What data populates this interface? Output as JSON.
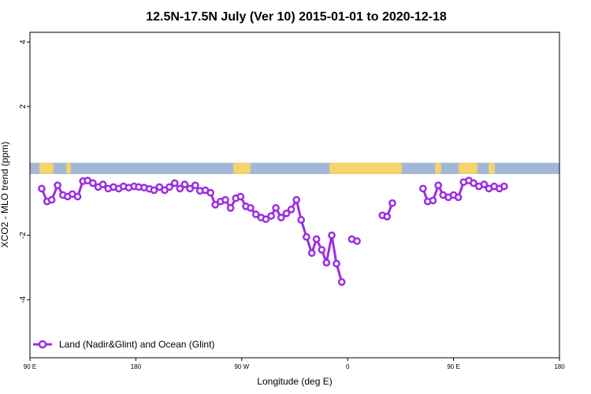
{
  "chart_data": {
    "type": "line",
    "title": "12.5N-17.5N July (Ver 10)   2015-01-01 to 2020-12-18",
    "xlabel": "Longitude (deg E)",
    "ylabel": "XCO2 - MLO trend (ppm)",
    "xlim": [
      -270,
      -180
    ],
    "ylim": [
      -5.8,
      4.3
    ],
    "x_ticks": [
      {
        "value": -270,
        "label": "90 E"
      },
      {
        "value": -252,
        "label": "180"
      },
      {
        "value": -234,
        "label": "90 W"
      },
      {
        "value": -216,
        "label": "0"
      },
      {
        "value": -198,
        "label": "90 E"
      },
      {
        "value": -180,
        "label": "180"
      }
    ],
    "y_ticks": [
      {
        "value": 4,
        "label": "4"
      },
      {
        "value": 2,
        "label": "2"
      },
      {
        "value": -2,
        "label": "-2"
      },
      {
        "value": -4,
        "label": "-4"
      }
    ],
    "grid": false,
    "legend_position": "bottom-left",
    "series": [
      {
        "name": "Land (Nadir&Glint) and Ocean (Glint)",
        "color": "#9b2ee0",
        "segments": [
          [
            [
              -268,
              -0.55
            ],
            [
              -267.1,
              -0.95
            ],
            [
              -266.3,
              -0.9
            ],
            [
              -265.3,
              -0.45
            ],
            [
              -264.4,
              -0.75
            ],
            [
              -263.6,
              -0.8
            ],
            [
              -262.8,
              -0.72
            ],
            [
              -261.9,
              -0.8
            ],
            [
              -261.0,
              -0.32
            ],
            [
              -260.2,
              -0.3
            ],
            [
              -259.3,
              -0.38
            ],
            [
              -258.4,
              -0.5
            ],
            [
              -257.6,
              -0.42
            ],
            [
              -256.7,
              -0.55
            ],
            [
              -255.8,
              -0.5
            ],
            [
              -254.9,
              -0.55
            ],
            [
              -254.1,
              -0.48
            ],
            [
              -253.2,
              -0.52
            ],
            [
              -252.3,
              -0.48
            ],
            [
              -251.5,
              -0.5
            ],
            [
              -250.6,
              -0.52
            ],
            [
              -249.7,
              -0.56
            ],
            [
              -248.9,
              -0.6
            ],
            [
              -248.0,
              -0.5
            ],
            [
              -247.1,
              -0.6
            ],
            [
              -246.3,
              -0.5
            ],
            [
              -245.4,
              -0.38
            ],
            [
              -244.5,
              -0.55
            ],
            [
              -243.7,
              -0.42
            ],
            [
              -242.8,
              -0.55
            ],
            [
              -241.9,
              -0.45
            ],
            [
              -241.1,
              -0.62
            ],
            [
              -240.2,
              -0.6
            ],
            [
              -239.3,
              -0.68
            ],
            [
              -238.5,
              -1.05
            ],
            [
              -237.6,
              -0.95
            ],
            [
              -236.8,
              -0.9
            ],
            [
              -235.9,
              -1.15
            ],
            [
              -235.0,
              -0.85
            ],
            [
              -234.2,
              -0.8
            ],
            [
              -233.3,
              -1.1
            ],
            [
              -232.5,
              -1.15
            ],
            [
              -231.6,
              -1.35
            ],
            [
              -230.7,
              -1.45
            ],
            [
              -229.9,
              -1.5
            ],
            [
              -229.0,
              -1.4
            ],
            [
              -228.2,
              -1.15
            ],
            [
              -227.3,
              -1.45
            ],
            [
              -226.4,
              -1.32
            ],
            [
              -225.6,
              -1.2
            ],
            [
              -224.7,
              -0.9
            ],
            [
              -223.9,
              -1.52
            ],
            [
              -223.0,
              -2.05
            ],
            [
              -222.1,
              -2.55
            ],
            [
              -221.3,
              -2.12
            ],
            [
              -220.4,
              -2.45
            ],
            [
              -219.6,
              -2.85
            ],
            [
              -218.7,
              -2.0
            ],
            [
              -217.9,
              -2.88
            ],
            [
              -217.0,
              -3.45
            ]
          ],
          [
            [
              -215.3,
              -2.12
            ],
            [
              -214.4,
              -2.18
            ]
          ],
          [
            [
              -210.1,
              -1.38
            ],
            [
              -209.3,
              -1.42
            ],
            [
              -208.4,
              -1.0
            ]
          ],
          [
            [
              -203.2,
              -0.55
            ],
            [
              -202.4,
              -0.95
            ],
            [
              -201.5,
              -0.92
            ],
            [
              -200.6,
              -0.45
            ],
            [
              -199.8,
              -0.75
            ],
            [
              -198.9,
              -0.82
            ],
            [
              -198.0,
              -0.75
            ],
            [
              -197.2,
              -0.82
            ],
            [
              -196.3,
              -0.35
            ],
            [
              -195.4,
              -0.3
            ],
            [
              -194.6,
              -0.38
            ],
            [
              -193.7,
              -0.48
            ],
            [
              -192.8,
              -0.42
            ],
            [
              -192.0,
              -0.55
            ],
            [
              -191.1,
              -0.48
            ],
            [
              -190.2,
              -0.55
            ],
            [
              -189.4,
              -0.48
            ]
          ]
        ]
      }
    ]
  }
}
